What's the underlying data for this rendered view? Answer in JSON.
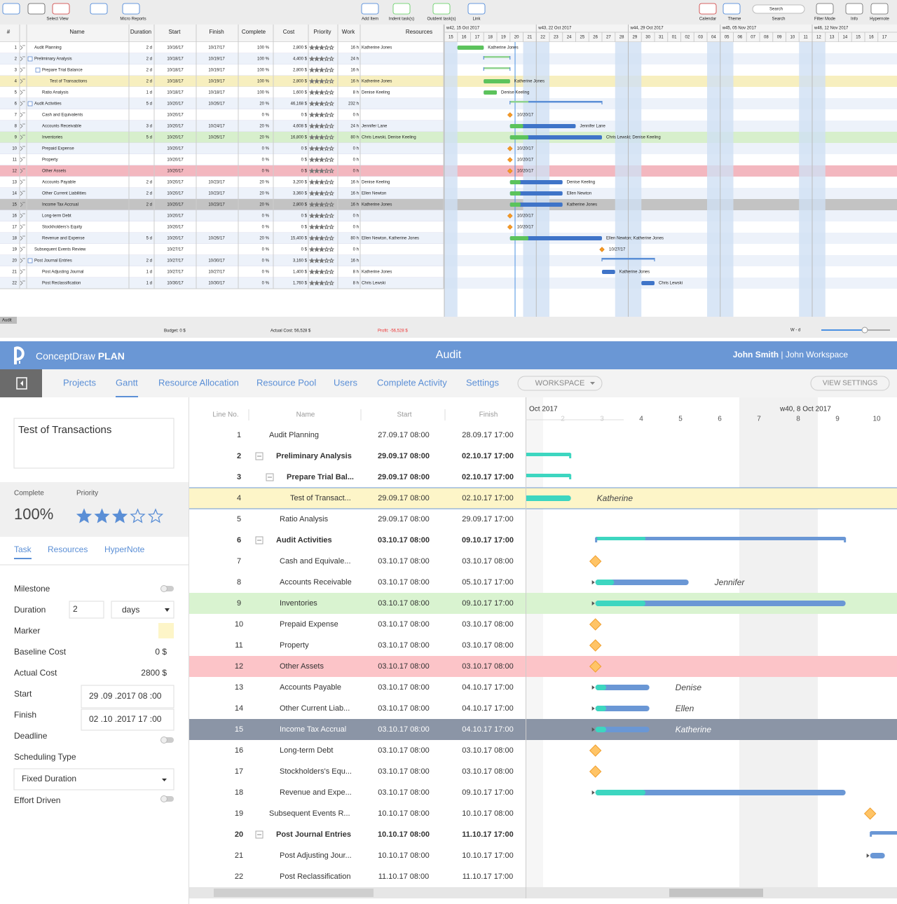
{
  "desktop": {
    "toolbar": {
      "left": [
        "Select View",
        "Micro Reports"
      ],
      "center": [
        "Add Item",
        "Indent task(s)",
        "Outdent task(s)",
        "Link"
      ],
      "right": [
        "Calendar",
        "Theme",
        "Search",
        "Filter Mode",
        "Info",
        "Hypernote"
      ],
      "search_placeholder": "Search"
    },
    "columns": [
      "#",
      "Name",
      "Duration",
      "Start",
      "Finish",
      "Complete",
      "Cost",
      "Priority",
      "Work",
      "Resources"
    ],
    "weeks": [
      "w42, 15 Oct 2017",
      "w43, 22 Oct 2017",
      "w44, 29 Oct 2017",
      "w45, 05 Nov 2017",
      "w46, 12 Nov 2017"
    ],
    "days": [
      "15",
      "16",
      "17",
      "18",
      "19",
      "20",
      "21",
      "22",
      "23",
      "24",
      "25",
      "26",
      "27",
      "28",
      "29",
      "30",
      "31",
      "01",
      "02",
      "03",
      "04",
      "05",
      "06",
      "07",
      "08",
      "09",
      "10",
      "11",
      "12",
      "13",
      "14",
      "15",
      "16",
      "17"
    ],
    "rows": [
      {
        "id": 1,
        "name": "Audit Planning",
        "duration": "2 d",
        "start": "10/16/17",
        "finish": "10/17/17",
        "complete": "100 %",
        "cost": "2,800 $",
        "priority": 3,
        "work": "16 h",
        "resources": "Katherine Jones"
      },
      {
        "id": 2,
        "name": "Preliminary Analysis",
        "duration": "2 d",
        "start": "10/18/17",
        "finish": "10/19/17",
        "complete": "100 %",
        "cost": "4,400 $",
        "priority": 3,
        "work": "24 h"
      },
      {
        "id": 3,
        "name": "Prepare Trial Balance",
        "duration": "2 d",
        "start": "10/18/17",
        "finish": "10/19/17",
        "complete": "100 %",
        "cost": "2,800 $",
        "priority": 3,
        "work": "16 h"
      },
      {
        "id": 4,
        "name": "Test of Transactions",
        "duration": "2 d",
        "start": "10/18/17",
        "finish": "10/19/17",
        "complete": "100 %",
        "cost": "2,800 $",
        "priority": 3,
        "work": "16 h",
        "resources": "Katherine Jones"
      },
      {
        "id": 5,
        "name": "Ratio Analysis",
        "duration": "1 d",
        "start": "10/18/17",
        "finish": "10/18/17",
        "complete": "100 %",
        "cost": "1,600 $",
        "priority": 3,
        "work": "8 h",
        "resources": "Denise Keeling"
      },
      {
        "id": 6,
        "name": "Audit Activities",
        "duration": "5 d",
        "start": "10/20/17",
        "finish": "10/26/17",
        "complete": "20 %",
        "cost": "46,168 $",
        "priority": 3,
        "work": "232 h"
      },
      {
        "id": 7,
        "name": "Cash and Equivalents",
        "start": "10/20/17",
        "complete": "0 %",
        "cost": "0 $",
        "priority": 3,
        "work": "0 h"
      },
      {
        "id": 8,
        "name": "Accounts Receivable",
        "duration": "3 d",
        "start": "10/20/17",
        "finish": "10/24/17",
        "complete": "20 %",
        "cost": "4,608 $",
        "priority": 3,
        "work": "24 h",
        "resources": "Jennifer Lane"
      },
      {
        "id": 9,
        "name": "Inventories",
        "duration": "5 d",
        "start": "10/20/17",
        "finish": "10/26/17",
        "complete": "20 %",
        "cost": "16,800 $",
        "priority": 3,
        "work": "80 h",
        "resources": "Chris Lewski, Denise Keeling",
        "bar_label": "Chris Lewski; Denise Keeling"
      },
      {
        "id": 10,
        "name": "Prepaid Expense",
        "start": "10/20/17",
        "complete": "0 %",
        "cost": "0 $",
        "priority": 3,
        "work": "0 h"
      },
      {
        "id": 11,
        "name": "Property",
        "start": "10/20/17",
        "complete": "0 %",
        "cost": "0 $",
        "priority": 3,
        "work": "0 h"
      },
      {
        "id": 12,
        "name": "Other Assets",
        "start": "10/20/17",
        "complete": "0 %",
        "cost": "0 $",
        "priority": 3,
        "work": "0 h"
      },
      {
        "id": 13,
        "name": "Accounts Payable",
        "duration": "2 d",
        "start": "10/20/17",
        "finish": "10/23/17",
        "complete": "20 %",
        "cost": "3,200 $",
        "priority": 3,
        "work": "16 h",
        "resources": "Denise Keeling"
      },
      {
        "id": 14,
        "name": "Other Current Liabilities",
        "duration": "2 d",
        "start": "10/20/17",
        "finish": "10/23/17",
        "complete": "20 %",
        "cost": "3,360 $",
        "priority": 3,
        "work": "16 h",
        "resources": "Ellen Newton"
      },
      {
        "id": 15,
        "name": "Income Tax  Accrual",
        "duration": "2 d",
        "start": "10/20/17",
        "finish": "10/23/17",
        "complete": "20 %",
        "cost": "2,800 $",
        "priority": 3,
        "work": "16 h",
        "resources": "Katherine Jones"
      },
      {
        "id": 16,
        "name": "Long-term Debt",
        "start": "10/20/17",
        "complete": "0 %",
        "cost": "0 $",
        "priority": 3,
        "work": "0 h"
      },
      {
        "id": 17,
        "name": "Stockholders's Equity",
        "start": "10/20/17",
        "complete": "0 %",
        "cost": "0 $",
        "priority": 3,
        "work": "0 h"
      },
      {
        "id": 18,
        "name": "Revenue and Expense",
        "duration": "5 d",
        "start": "10/20/17",
        "finish": "10/26/17",
        "complete": "20 %",
        "cost": "15,400 $",
        "priority": 3,
        "work": "80 h",
        "resources": "Ellen Newton, Katherine Jones",
        "bar_label": "Ellen Newton; Katherine Jones"
      },
      {
        "id": 19,
        "name": "Subsequent Events Review",
        "start": "10/27/17",
        "complete": "0 %",
        "cost": "0 $",
        "priority": 3,
        "work": "0 h"
      },
      {
        "id": 20,
        "name": "Post Journal Entries",
        "duration": "2 d",
        "start": "10/27/17",
        "finish": "10/30/17",
        "complete": "0 %",
        "cost": "3,160 $",
        "priority": 3,
        "work": "16 h"
      },
      {
        "id": 21,
        "name": "Post Adjusting Journal",
        "duration": "1 d",
        "start": "10/27/17",
        "finish": "10/27/17",
        "complete": "0 %",
        "cost": "1,400 $",
        "priority": 3,
        "work": "8 h",
        "resources": "Katherine Jones"
      },
      {
        "id": 22,
        "name": "Post Reclassification",
        "duration": "1 d",
        "start": "10/30/17",
        "finish": "10/30/17",
        "complete": "0 %",
        "cost": "1,760 $",
        "priority": 3,
        "work": "8 h",
        "resources": "Chris Lewski"
      }
    ],
    "status": {
      "tab": "Audit",
      "budget": "Budget: 0 $",
      "actual": "Actual Cost: 56,528 $",
      "profit": "Profit: -56,528 $",
      "zoom": "W - d"
    }
  },
  "web": {
    "header": {
      "brand": "ConceptDraw",
      "brand_bold": "PLAN",
      "project": "Audit",
      "user": "John Smith",
      "workspace": "John Workspace"
    },
    "nav": [
      "Projects",
      "Gantt",
      "Resource Allocation",
      "Resource Pool",
      "Users",
      "Complete Activity",
      "Settings"
    ],
    "workspace": "WORKSPACE",
    "view_settings": "VIEW SETTINGS",
    "panel": {
      "title": "Test of Transactions",
      "complete_label": "Complete",
      "complete": "100%",
      "priority_label": "Priority",
      "priority": 3,
      "tabs": [
        "Task",
        "Resources",
        "HyperNote"
      ],
      "milestone": "Milestone",
      "duration": "Duration",
      "duration_value": "2",
      "duration_unit": "days",
      "marker": "Marker",
      "baseline_cost": "Baseline Cost",
      "baseline_cost_value": "0 $",
      "actual_cost": "Actual Cost",
      "actual_cost_value": "2800 $",
      "start": "Start",
      "start_value": "29 .09 .2017  08 :00",
      "finish": "Finish",
      "finish_value": "02 .10 .2017  17 :00",
      "deadline": "Deadline",
      "scheduling_type": "Scheduling Type",
      "scheduling_value": "Fixed Duration",
      "effort_driven": "Effort Driven"
    },
    "columns": [
      "Line No.",
      "Name",
      "Start",
      "Finish"
    ],
    "month": "Oct 2017",
    "week": "w40, 8 Oct 2017",
    "days": [
      "2",
      "3",
      "4",
      "5",
      "6",
      "7",
      "8",
      "9",
      "10"
    ],
    "rows": [
      {
        "line": 1,
        "name": "Audit Planning",
        "start": "27.09.17 08:00",
        "finish": "28.09.17 17:00"
      },
      {
        "line": 2,
        "name": "Preliminary Analysis",
        "start": "29.09.17 08:00",
        "finish": "02.10.17 17:00"
      },
      {
        "line": 3,
        "name": "Prepare Trial Bal...",
        "start": "29.09.17 08:00",
        "finish": "02.10.17 17:00"
      },
      {
        "line": 4,
        "name": "Test of Transact...",
        "start": "29.09.17 08:00",
        "finish": "02.10.17 17:00",
        "label": "Katherine"
      },
      {
        "line": 5,
        "name": "Ratio Analysis",
        "start": "29.09.17 08:00",
        "finish": "29.09.17 17:00"
      },
      {
        "line": 6,
        "name": "Audit Activities",
        "start": "03.10.17 08:00",
        "finish": "09.10.17 17:00"
      },
      {
        "line": 7,
        "name": "Cash and Equivale...",
        "start": "03.10.17 08:00",
        "finish": "03.10.17 08:00"
      },
      {
        "line": 8,
        "name": "Accounts Receivable",
        "start": "03.10.17 08:00",
        "finish": "05.10.17 17:00",
        "label": "Jennifer"
      },
      {
        "line": 9,
        "name": "Inventories",
        "start": "03.10.17 08:00",
        "finish": "09.10.17 17:00"
      },
      {
        "line": 10,
        "name": "Prepaid Expense",
        "start": "03.10.17 08:00",
        "finish": "03.10.17 08:00"
      },
      {
        "line": 11,
        "name": "Property",
        "start": "03.10.17 08:00",
        "finish": "03.10.17 08:00"
      },
      {
        "line": 12,
        "name": "Other Assets",
        "start": "03.10.17 08:00",
        "finish": "03.10.17 08:00"
      },
      {
        "line": 13,
        "name": "Accounts Payable",
        "start": "03.10.17 08:00",
        "finish": "04.10.17 17:00",
        "label": "Denise"
      },
      {
        "line": 14,
        "name": "Other Current Liab...",
        "start": "03.10.17 08:00",
        "finish": "04.10.17 17:00",
        "label": "Ellen"
      },
      {
        "line": 15,
        "name": "Income Tax Accrual",
        "start": "03.10.17 08:00",
        "finish": "04.10.17 17:00",
        "label": "Katherine"
      },
      {
        "line": 16,
        "name": "Long-term Debt",
        "start": "03.10.17 08:00",
        "finish": "03.10.17 08:00"
      },
      {
        "line": 17,
        "name": "Stockholders's Equ...",
        "start": "03.10.17 08:00",
        "finish": "03.10.17 08:00"
      },
      {
        "line": 18,
        "name": "Revenue and Expe...",
        "start": "03.10.17 08:00",
        "finish": "09.10.17 17:00"
      },
      {
        "line": 19,
        "name": "Subsequent Events R...",
        "start": "10.10.17 08:00",
        "finish": "10.10.17 08:00"
      },
      {
        "line": 20,
        "name": "Post Journal Entries",
        "start": "10.10.17 08:00",
        "finish": "11.10.17 17:00"
      },
      {
        "line": 21,
        "name": "Post Adjusting Jour...",
        "start": "10.10.17 08:00",
        "finish": "10.10.17 17:00"
      },
      {
        "line": 22,
        "name": "Post Reclassification",
        "start": "11.10.17 08:00",
        "finish": "11.10.17 17:00"
      }
    ]
  }
}
